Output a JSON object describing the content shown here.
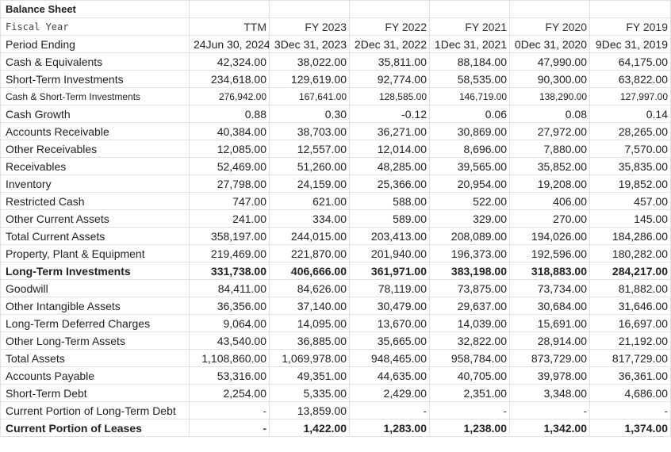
{
  "sheet_title": "Balance Sheet",
  "header_row": {
    "label": "Fiscal Year",
    "columns": [
      "TTM",
      "FY 2023",
      "FY 2022",
      "FY 2021",
      "FY 2020",
      "FY 2019"
    ]
  },
  "period_row": {
    "label": "Period Ending",
    "columns": [
      "24Jun 30, 2024",
      "3Dec 31, 2023",
      "2Dec 31, 2022",
      "1Dec 31, 2021",
      "0Dec 31, 2020",
      "9Dec 31, 2019"
    ]
  },
  "rows": [
    {
      "label": "Cash & Equivalents",
      "values": [
        "42,324.00",
        "38,022.00",
        "35,811.00",
        "88,184.00",
        "47,990.00",
        "64,175.00"
      ]
    },
    {
      "label": "Short-Term Investments",
      "values": [
        "234,618.00",
        "129,619.00",
        "92,774.00",
        "58,535.00",
        "90,300.00",
        "63,822.00"
      ]
    },
    {
      "label": "Cash & Short-Term Investments",
      "values": [
        "276,942.00",
        "167,641.00",
        "128,585.00",
        "146,719.00",
        "138,290.00",
        "127,997.00"
      ],
      "style": "small"
    },
    {
      "label": "Cash Growth",
      "values": [
        "0.88",
        "0.30",
        "-0.12",
        "0.06",
        "0.08",
        "0.14"
      ]
    },
    {
      "label": "Accounts Receivable",
      "values": [
        "40,384.00",
        "38,703.00",
        "36,271.00",
        "30,869.00",
        "27,972.00",
        "28,265.00"
      ]
    },
    {
      "label": "Other Receivables",
      "values": [
        "12,085.00",
        "12,557.00",
        "12,014.00",
        "8,696.00",
        "7,880.00",
        "7,570.00"
      ]
    },
    {
      "label": "Receivables",
      "values": [
        "52,469.00",
        "51,260.00",
        "48,285.00",
        "39,565.00",
        "35,852.00",
        "35,835.00"
      ]
    },
    {
      "label": "Inventory",
      "values": [
        "27,798.00",
        "24,159.00",
        "25,366.00",
        "20,954.00",
        "19,208.00",
        "19,852.00"
      ]
    },
    {
      "label": "Restricted Cash",
      "values": [
        "747.00",
        "621.00",
        "588.00",
        "522.00",
        "406.00",
        "457.00"
      ]
    },
    {
      "label": "Other Current Assets",
      "values": [
        "241.00",
        "334.00",
        "589.00",
        "329.00",
        "270.00",
        "145.00"
      ]
    },
    {
      "label": "Total Current Assets",
      "values": [
        "358,197.00",
        "244,015.00",
        "203,413.00",
        "208,089.00",
        "194,026.00",
        "184,286.00"
      ]
    },
    {
      "label": "Property, Plant & Equipment",
      "values": [
        "219,469.00",
        "221,870.00",
        "201,940.00",
        "196,373.00",
        "192,596.00",
        "180,282.00"
      ]
    },
    {
      "label": "Long-Term Investments",
      "values": [
        "331,738.00",
        "406,666.00",
        "361,971.00",
        "383,198.00",
        "318,883.00",
        "284,217.00"
      ],
      "style": "bold"
    },
    {
      "label": "Goodwill",
      "values": [
        "84,411.00",
        "84,626.00",
        "78,119.00",
        "73,875.00",
        "73,734.00",
        "81,882.00"
      ]
    },
    {
      "label": "Other Intangible Assets",
      "values": [
        "36,356.00",
        "37,140.00",
        "30,479.00",
        "29,637.00",
        "30,684.00",
        "31,646.00"
      ]
    },
    {
      "label": "Long-Term Deferred Charges",
      "values": [
        "9,064.00",
        "14,095.00",
        "13,670.00",
        "14,039.00",
        "15,691.00",
        "16,697.00"
      ]
    },
    {
      "label": "Other Long-Term Assets",
      "values": [
        "43,540.00",
        "36,885.00",
        "35,665.00",
        "32,822.00",
        "28,914.00",
        "21,192.00"
      ]
    },
    {
      "label": "Total Assets",
      "values": [
        "1,108,860.00",
        "1,069,978.00",
        "948,465.00",
        "958,784.00",
        "873,729.00",
        "817,729.00"
      ]
    },
    {
      "label": "Accounts Payable",
      "values": [
        "53,316.00",
        "49,351.00",
        "44,635.00",
        "40,705.00",
        "39,978.00",
        "36,361.00"
      ]
    },
    {
      "label": "Short-Term Debt",
      "values": [
        "2,254.00",
        "5,335.00",
        "2,429.00",
        "2,351.00",
        "3,348.00",
        "4,686.00"
      ]
    },
    {
      "label": "Current Portion of Long-Term Debt",
      "values": [
        "-",
        "13,859.00",
        "-",
        "-",
        "-",
        "-"
      ]
    },
    {
      "label": "Current Portion of Leases",
      "values": [
        "-",
        "1,422.00",
        "1,283.00",
        "1,238.00",
        "1,342.00",
        "1,374.00"
      ],
      "style": "bold"
    }
  ]
}
